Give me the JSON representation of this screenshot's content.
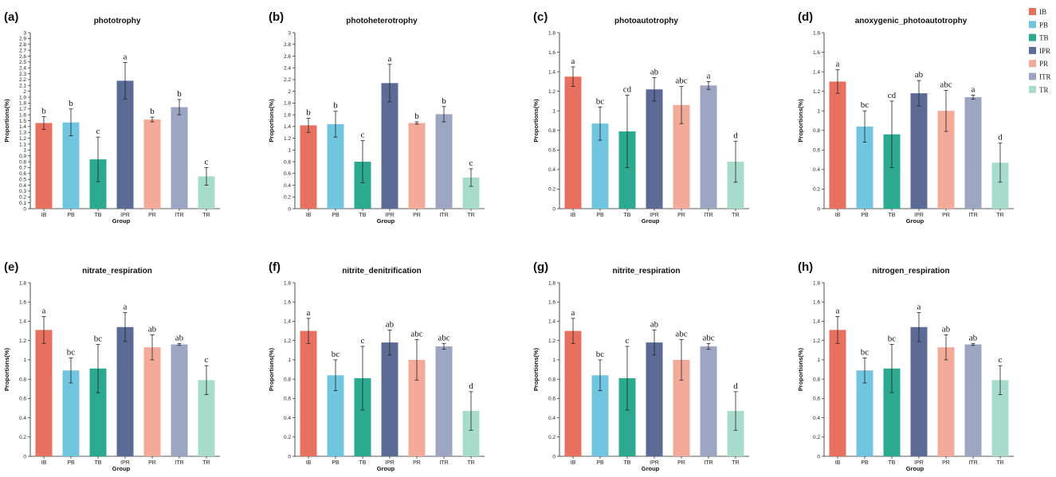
{
  "figure": {
    "axis_title_y": "Proportions(%)",
    "axis_title_x": "Group",
    "categories": [
      "IB",
      "PB",
      "TB",
      "IPR",
      "PR",
      "ITR",
      "TR"
    ],
    "colors": [
      "#E8705F",
      "#70C5DF",
      "#2BAA8F",
      "#5B6B96",
      "#F3AA99",
      "#9CA5C2",
      "#A7DCCD"
    ]
  },
  "legend": [
    {
      "label": "IB",
      "color": "#E8705F"
    },
    {
      "label": "PB",
      "color": "#70C5DF"
    },
    {
      "label": "TB",
      "color": "#2BAA8F"
    },
    {
      "label": "IPR",
      "color": "#5B6B96"
    },
    {
      "label": "PR",
      "color": "#F3AA99"
    },
    {
      "label": "ITR",
      "color": "#9CA5C2"
    },
    {
      "label": "TR",
      "color": "#A7DCCD"
    }
  ],
  "chart_data": [
    {
      "type": "bar",
      "panel": "(a)",
      "title": "phototrophy",
      "xlabel": "Group",
      "ylabel": "Proportions(%)",
      "categories": [
        "IB",
        "PB",
        "TB",
        "IPR",
        "PR",
        "ITR",
        "TR"
      ],
      "values": [
        1.46,
        1.47,
        0.84,
        2.18,
        1.52,
        1.73,
        0.55
      ],
      "errors": [
        0.11,
        0.23,
        0.38,
        0.31,
        0.04,
        0.13,
        0.15
      ],
      "significance": [
        "b",
        "b",
        "c",
        "a",
        "b",
        "b",
        "c"
      ],
      "ylim": [
        0,
        3
      ],
      "yticks": [
        "0",
        "0.1",
        "0.2",
        "0.3",
        "0.4",
        "0.5",
        "0.6",
        "0.7",
        "0.8",
        "0.9",
        "1",
        "1.1",
        "1.2",
        "1.3",
        "1.4",
        "1.5",
        "1.6",
        "1.7",
        "1.8",
        "1.9",
        "2",
        "2.1",
        "2.2",
        "2.3",
        "2.4",
        "2.5",
        "2.6",
        "2.7",
        "2.8",
        "2.9",
        "3"
      ]
    },
    {
      "type": "bar",
      "panel": "(b)",
      "title": "photoheterotrophy",
      "xlabel": "Group",
      "ylabel": "Proportions(%)",
      "categories": [
        "IB",
        "PB",
        "TB",
        "IPR",
        "PR",
        "ITR",
        "TR"
      ],
      "values": [
        1.42,
        1.44,
        0.8,
        2.14,
        1.46,
        1.61,
        0.53
      ],
      "errors": [
        0.12,
        0.22,
        0.36,
        0.32,
        0.02,
        0.13,
        0.15
      ],
      "significance": [
        "b",
        "b",
        "c",
        "a",
        "b",
        "b",
        "c"
      ],
      "ylim": [
        0,
        3
      ],
      "yticks": [
        "0",
        "0.2",
        "0.4",
        "0.6",
        "0.8",
        "1",
        "1.2",
        "1.4",
        "1.6",
        "1.8",
        "2",
        "2.2",
        "2.4",
        "2.6",
        "2.8",
        "3"
      ]
    },
    {
      "type": "bar",
      "panel": "(c)",
      "title": "photoautotrophy",
      "xlabel": "Group",
      "ylabel": "Proportions(%)",
      "categories": [
        "IB",
        "PB",
        "TB",
        "IPR",
        "PR",
        "ITR",
        "TR"
      ],
      "values": [
        1.35,
        0.87,
        0.79,
        1.22,
        1.06,
        1.26,
        0.48
      ],
      "errors": [
        0.1,
        0.17,
        0.37,
        0.12,
        0.19,
        0.04,
        0.21
      ],
      "significance": [
        "a",
        "bc",
        "cd",
        "ab",
        "abc",
        "a",
        "d"
      ],
      "ylim": [
        0,
        1.8
      ],
      "yticks": [
        "0",
        "0.2",
        "0.4",
        "0.6",
        "0.8",
        "1",
        "1.2",
        "1.4",
        "1.6",
        "1.8"
      ]
    },
    {
      "type": "bar",
      "panel": "(d)",
      "title": "anoxygenic_photoautotrophy",
      "xlabel": "Group",
      "ylabel": "Proportions(%)",
      "categories": [
        "IB",
        "PB",
        "TB",
        "IPR",
        "PR",
        "ITR",
        "TR"
      ],
      "values": [
        1.3,
        0.84,
        0.76,
        1.18,
        1.0,
        1.14,
        0.47
      ],
      "errors": [
        0.12,
        0.16,
        0.34,
        0.13,
        0.21,
        0.02,
        0.2
      ],
      "significance": [
        "a",
        "bc",
        "cd",
        "ab",
        "abc",
        "a",
        "d"
      ],
      "ylim": [
        0,
        1.8
      ],
      "yticks": [
        "0",
        "0.2",
        "0.4",
        "0.6",
        "0.8",
        "1",
        "1.2",
        "1.4",
        "1.6",
        "1.8"
      ]
    },
    {
      "type": "bar",
      "panel": "(e)",
      "title": "nitrate_respiration",
      "xlabel": "Group",
      "ylabel": "Proportions(%)",
      "categories": [
        "IB",
        "PB",
        "TB",
        "IPR",
        "PR",
        "ITR",
        "TR"
      ],
      "values": [
        1.31,
        0.89,
        0.91,
        1.34,
        1.13,
        1.16,
        0.79
      ],
      "errors": [
        0.14,
        0.13,
        0.25,
        0.15,
        0.13,
        0.01,
        0.15
      ],
      "significance": [
        "a",
        "bc",
        "bc",
        "a",
        "ab",
        "ab",
        "c"
      ],
      "ylim": [
        0,
        1.8
      ],
      "yticks": [
        "0",
        "0.2",
        "0.4",
        "0.6",
        "0.8",
        "1",
        "1.2",
        "1.4",
        "1.6",
        "1.8"
      ]
    },
    {
      "type": "bar",
      "panel": "(f)",
      "title": "nitrite_denitrification",
      "xlabel": "Group",
      "ylabel": "Proportions(%)",
      "categories": [
        "IB",
        "PB",
        "TB",
        "IPR",
        "PR",
        "ITR",
        "TR"
      ],
      "values": [
        1.3,
        0.84,
        0.81,
        1.18,
        1.0,
        1.14,
        0.47
      ],
      "errors": [
        0.13,
        0.16,
        0.33,
        0.13,
        0.21,
        0.03,
        0.2
      ],
      "significance": [
        "a",
        "bc",
        "c",
        "ab",
        "abc",
        "abc",
        "d"
      ],
      "ylim": [
        0,
        1.8
      ],
      "yticks": [
        "0",
        "0.2",
        "0.4",
        "0.6",
        "0.8",
        "1",
        "1.2",
        "1.4",
        "1.6",
        "1.8"
      ]
    },
    {
      "type": "bar",
      "panel": "(g)",
      "title": "nitrite_respiration",
      "xlabel": "Group",
      "ylabel": "Proportions(%)",
      "categories": [
        "IB",
        "PB",
        "TB",
        "IPR",
        "PR",
        "ITR",
        "TR"
      ],
      "values": [
        1.3,
        0.84,
        0.81,
        1.18,
        1.0,
        1.14,
        0.47
      ],
      "errors": [
        0.13,
        0.16,
        0.33,
        0.13,
        0.21,
        0.03,
        0.2
      ],
      "significance": [
        "a",
        "bc",
        "c",
        "ab",
        "abc",
        "abc",
        "d"
      ],
      "ylim": [
        0,
        1.8
      ],
      "yticks": [
        "0",
        "0.2",
        "0.4",
        "0.6",
        "0.8",
        "1",
        "1.2",
        "1.4",
        "1.6",
        "1.8"
      ]
    },
    {
      "type": "bar",
      "panel": "(h)",
      "title": "nitrogen_respiration",
      "xlabel": "Group",
      "ylabel": "Proportions(%)",
      "categories": [
        "IB",
        "PB",
        "TB",
        "IPR",
        "PR",
        "ITR",
        "TR"
      ],
      "values": [
        1.31,
        0.89,
        0.91,
        1.34,
        1.13,
        1.16,
        0.79
      ],
      "errors": [
        0.14,
        0.13,
        0.25,
        0.15,
        0.13,
        0.01,
        0.15
      ],
      "significance": [
        "a",
        "bc",
        "bc",
        "a",
        "ab",
        "ab",
        "c"
      ],
      "ylim": [
        0,
        1.8
      ],
      "yticks": [
        "0",
        "0.2",
        "0.4",
        "0.6",
        "0.8",
        "1",
        "1.2",
        "1.4",
        "1.6",
        "1.8"
      ]
    }
  ]
}
